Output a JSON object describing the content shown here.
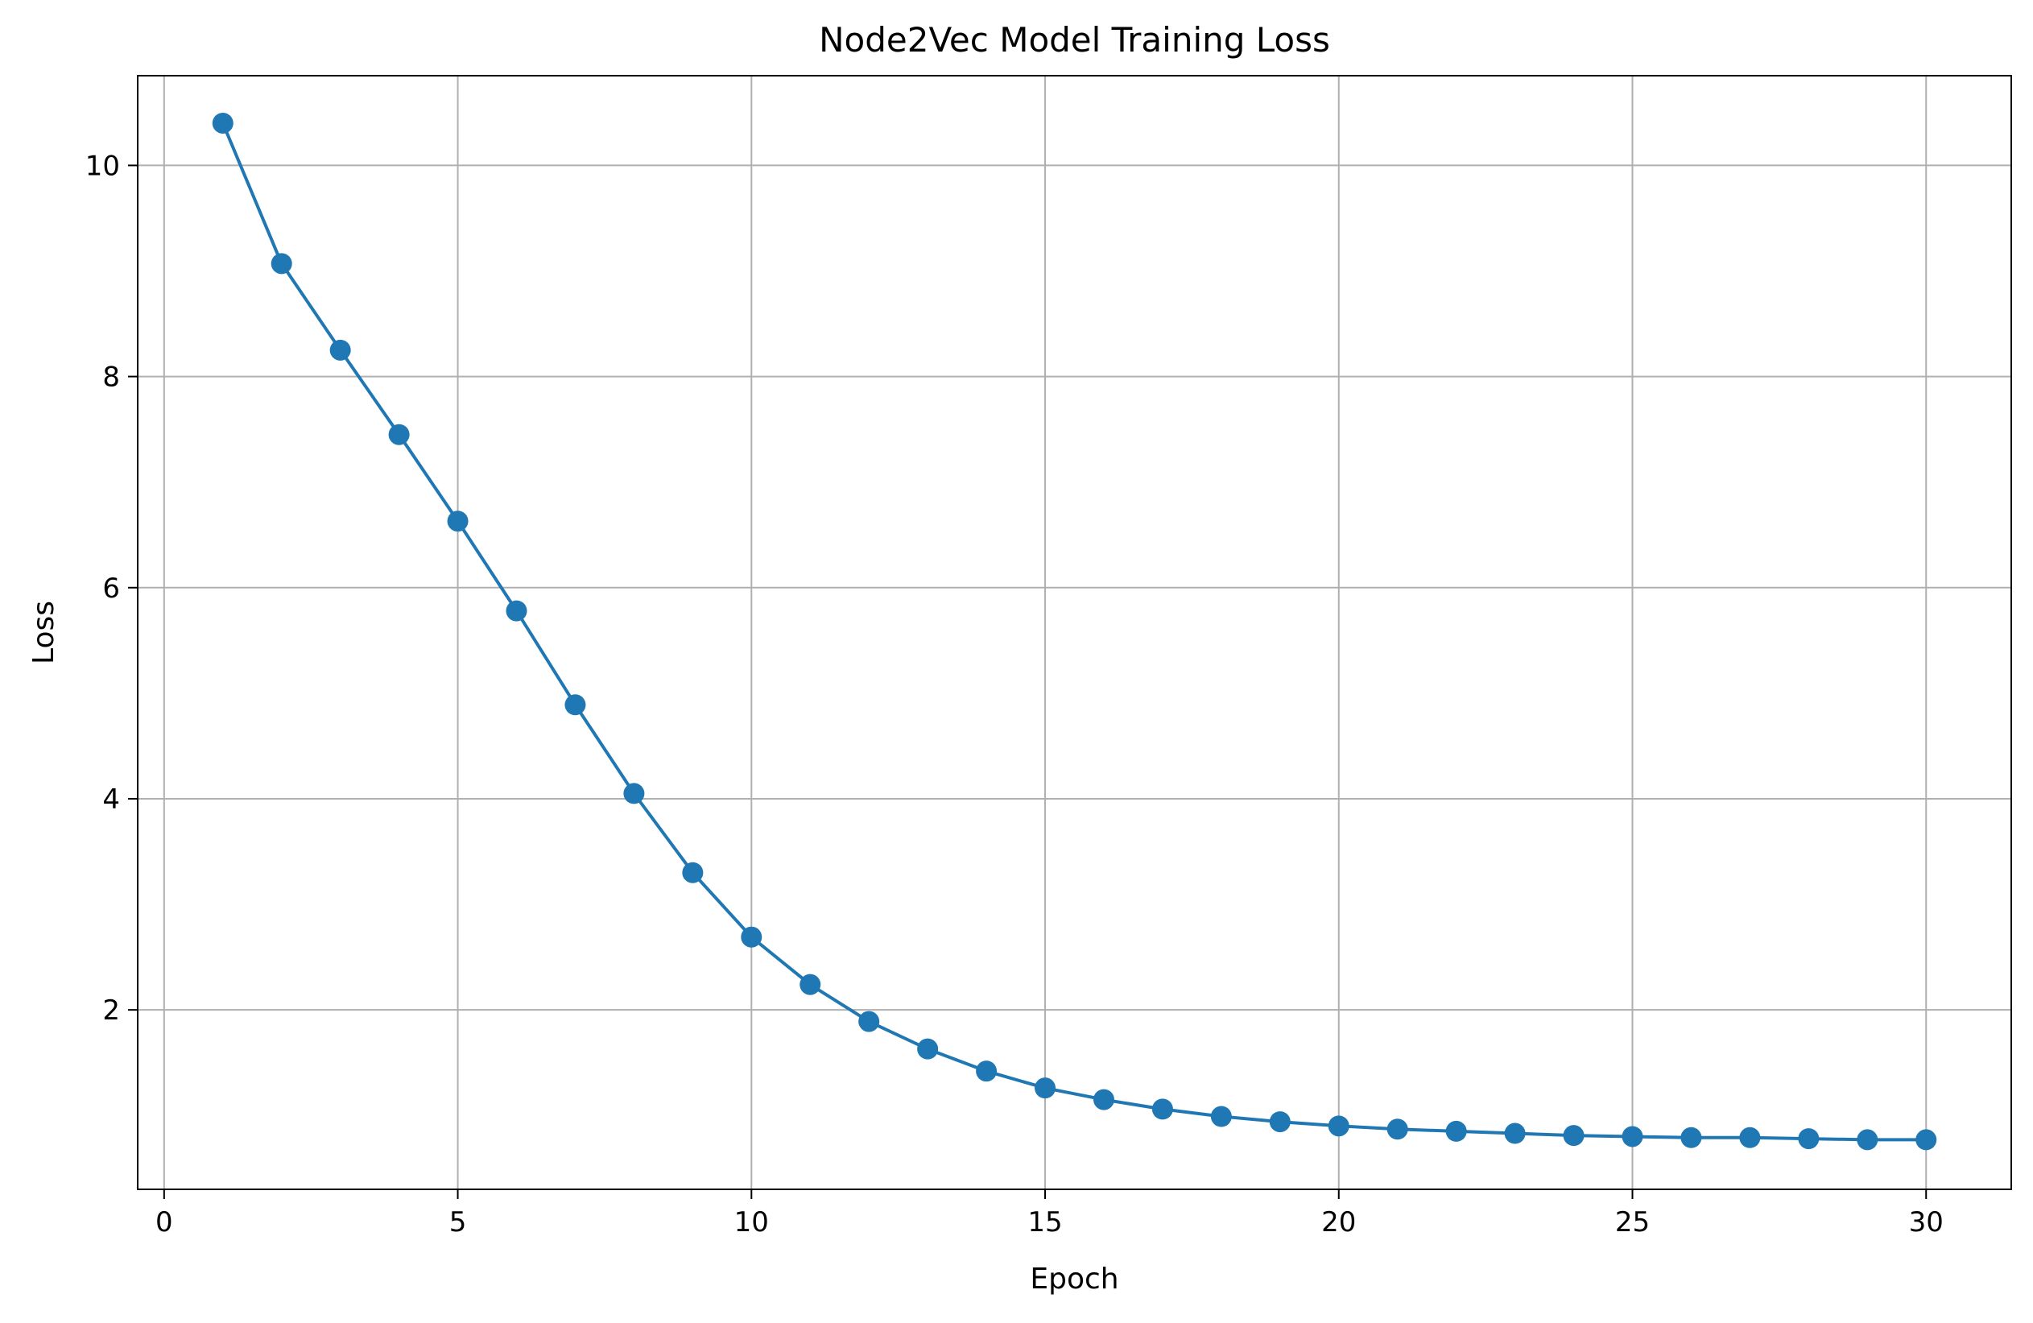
{
  "chart_data": {
    "type": "line",
    "title": "Node2Vec Model Training Loss",
    "xlabel": "Epoch",
    "ylabel": "Loss",
    "xlim": [
      -0.45,
      31.45
    ],
    "ylim": [
      0.3,
      10.85
    ],
    "xticks": [
      0,
      5,
      10,
      15,
      20,
      25,
      30
    ],
    "yticks": [
      2,
      4,
      6,
      8,
      10
    ],
    "grid": true,
    "legend": "none",
    "series": [
      {
        "color": "#1f77b4",
        "marker": "circle",
        "x": [
          1,
          2,
          3,
          4,
          5,
          6,
          7,
          8,
          9,
          10,
          11,
          12,
          13,
          14,
          15,
          16,
          17,
          18,
          19,
          20,
          21,
          22,
          23,
          24,
          25,
          26,
          27,
          28,
          29,
          30
        ],
        "y": [
          10.4,
          9.07,
          8.25,
          7.45,
          6.63,
          5.78,
          4.89,
          4.05,
          3.3,
          2.69,
          2.24,
          1.89,
          1.63,
          1.42,
          1.26,
          1.15,
          1.06,
          0.99,
          0.94,
          0.9,
          0.87,
          0.85,
          0.83,
          0.81,
          0.8,
          0.79,
          0.79,
          0.78,
          0.77,
          0.77
        ]
      }
    ]
  }
}
